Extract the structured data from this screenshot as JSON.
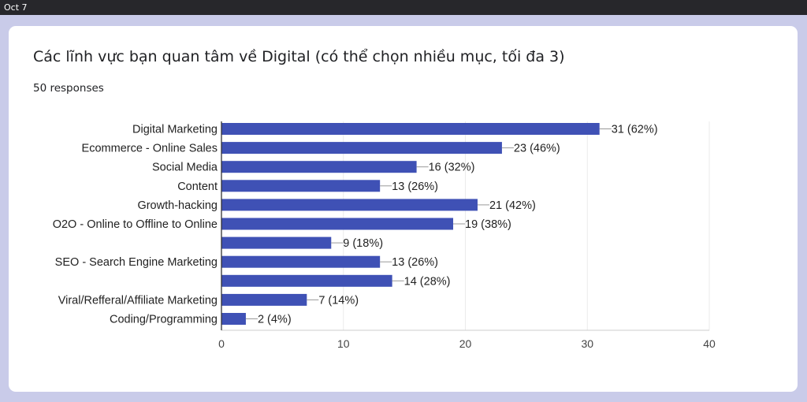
{
  "topbar": {
    "date": "Oct 7"
  },
  "form": {
    "question": "Các lĩnh vực bạn quan tâm về Digital (có thể chọn nhiều mục, tối đa 3)",
    "responses": "50 responses"
  },
  "colors": {
    "bar": "#3f51b5",
    "grid": "#ebebeb",
    "axis": "#333333",
    "text": "#222222"
  },
  "chart_data": {
    "type": "bar",
    "orientation": "horizontal",
    "categories": [
      "Digital Marketing",
      "Ecommerce - Online Sales",
      "Social Media",
      "Content",
      "Growth-hacking",
      "O2O - Online to Offline to Online",
      "",
      "SEO - Search Engine Marketing",
      "",
      "Viral/Refferal/Affiliate Marketing",
      "Coding/Programming"
    ],
    "values": [
      31,
      23,
      16,
      13,
      21,
      19,
      9,
      13,
      14,
      7,
      2
    ],
    "value_labels": [
      "31 (62%)",
      "23 (46%)",
      "16 (32%)",
      "13 (26%)",
      "21 (42%)",
      "19 (38%)",
      "9 (18%)",
      "13 (26%)",
      "14 (28%)",
      "7 (14%)",
      "2 (4%)"
    ],
    "xlim": [
      0,
      40
    ],
    "xticks": [
      "0",
      "10",
      "20",
      "30",
      "40"
    ],
    "grid": true,
    "legend": "none"
  }
}
